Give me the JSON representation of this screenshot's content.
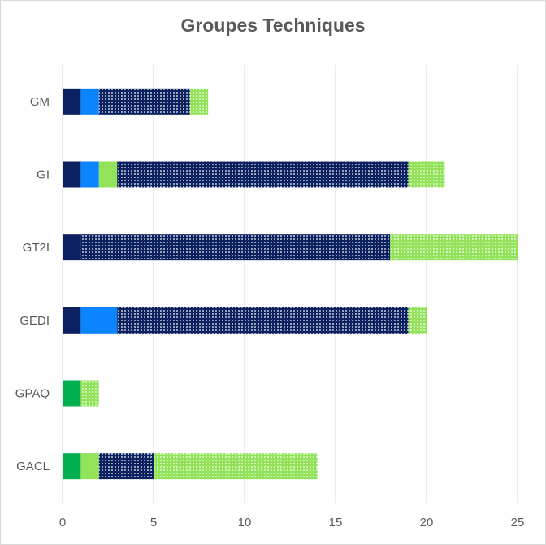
{
  "chart_data": {
    "type": "bar",
    "orientation": "horizontal",
    "stacked": true,
    "title": "Groupes Techniques",
    "xlabel": "",
    "ylabel": "",
    "xlim": [
      0,
      25
    ],
    "x_ticks": [
      0,
      5,
      10,
      15,
      20,
      25
    ],
    "grid": "vertical",
    "legend": "none",
    "categories": [
      "GM",
      "GI",
      "GT2I",
      "GEDI",
      "GPAQ",
      "GACL"
    ],
    "series": [
      {
        "color": "#0b2160",
        "pattern": "solid",
        "values": [
          1,
          1,
          1,
          1,
          0,
          0
        ]
      },
      {
        "color": "#0b84ff",
        "pattern": "solid",
        "values": [
          1,
          1,
          0,
          2,
          0,
          0
        ]
      },
      {
        "color": "#00b050",
        "pattern": "solid",
        "values": [
          0,
          0,
          0,
          0,
          1,
          1
        ]
      },
      {
        "color": "#92e25a",
        "pattern": "solid",
        "values": [
          0,
          1,
          0,
          0,
          0,
          1
        ]
      },
      {
        "color": "#0b2160",
        "pattern": "dotted",
        "values": [
          5,
          16,
          17,
          16,
          0,
          3
        ]
      },
      {
        "color": "#92e25a",
        "pattern": "dotted",
        "values": [
          1,
          2,
          7,
          1,
          1,
          9
        ]
      }
    ]
  }
}
